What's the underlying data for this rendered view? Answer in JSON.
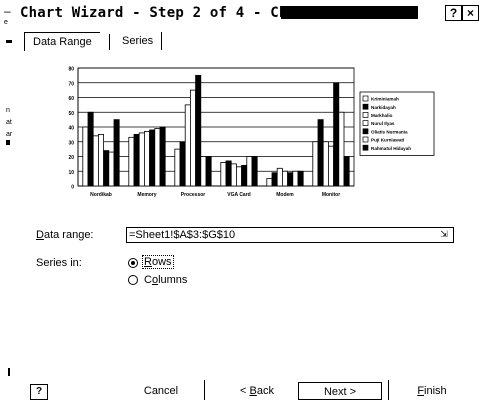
{
  "window": {
    "title": "Chart Wizard - Step 2 of 4 - Chart S",
    "help_glyph": "?",
    "close_glyph": "×",
    "sys_menu_glyph": "–",
    "left_edge_text": [
      "e",
      "n",
      "at",
      "ar"
    ]
  },
  "tabs": [
    {
      "label": "Data Range",
      "active": true
    },
    {
      "label": "Series",
      "active": false
    }
  ],
  "chart_data": {
    "type": "bar",
    "categories": [
      "Nordikab",
      "Memory",
      "Processor",
      "VGA Card",
      "Modem",
      "Monitor"
    ],
    "series": [
      {
        "name": "Kriminiamah",
        "color": "#ffffff",
        "values": [
          40,
          33,
          25,
          16,
          5,
          30
        ]
      },
      {
        "name": "Narkidayah",
        "color": "#000000",
        "values": [
          50,
          35,
          30,
          17,
          9,
          45
        ]
      },
      {
        "name": "Markhalio",
        "color": "#ffffff",
        "values": [
          34,
          36,
          55,
          15,
          12,
          30
        ]
      },
      {
        "name": "Nurul Ilyas",
        "color": "#ffffff",
        "values": [
          35,
          37,
          65,
          13,
          10,
          27
        ]
      },
      {
        "name": "Oliatis Nurmania",
        "color": "#000000",
        "values": [
          24,
          38,
          75,
          14,
          9,
          70
        ]
      },
      {
        "name": "Puji Kurniawati",
        "color": "#ffffff",
        "values": [
          23,
          39,
          20,
          20,
          10,
          50
        ]
      },
      {
        "name": "Rahmatul Hidayah",
        "color": "#000000",
        "values": [
          45,
          40,
          20,
          20,
          10,
          20
        ]
      }
    ],
    "ylim": [
      0,
      80
    ],
    "yticks": [
      "0",
      "10",
      "20",
      "30",
      "40",
      "50",
      "60",
      "70",
      "80"
    ],
    "grid": true,
    "legend_position": "right"
  },
  "form": {
    "data_range_label": "Data range:",
    "data_range_value": "=Sheet1!$A$3:$G$10",
    "collapse_glyph": "⇲",
    "series_in_label": "Series in:",
    "rows_label": "Rows",
    "columns_label": "Columns",
    "series_in_selected": "Rows"
  },
  "footer": {
    "help_glyph": "?",
    "cancel_label": "Cancel",
    "back_label": "< Back",
    "next_label": "Next >",
    "finish_label": "Finish"
  }
}
